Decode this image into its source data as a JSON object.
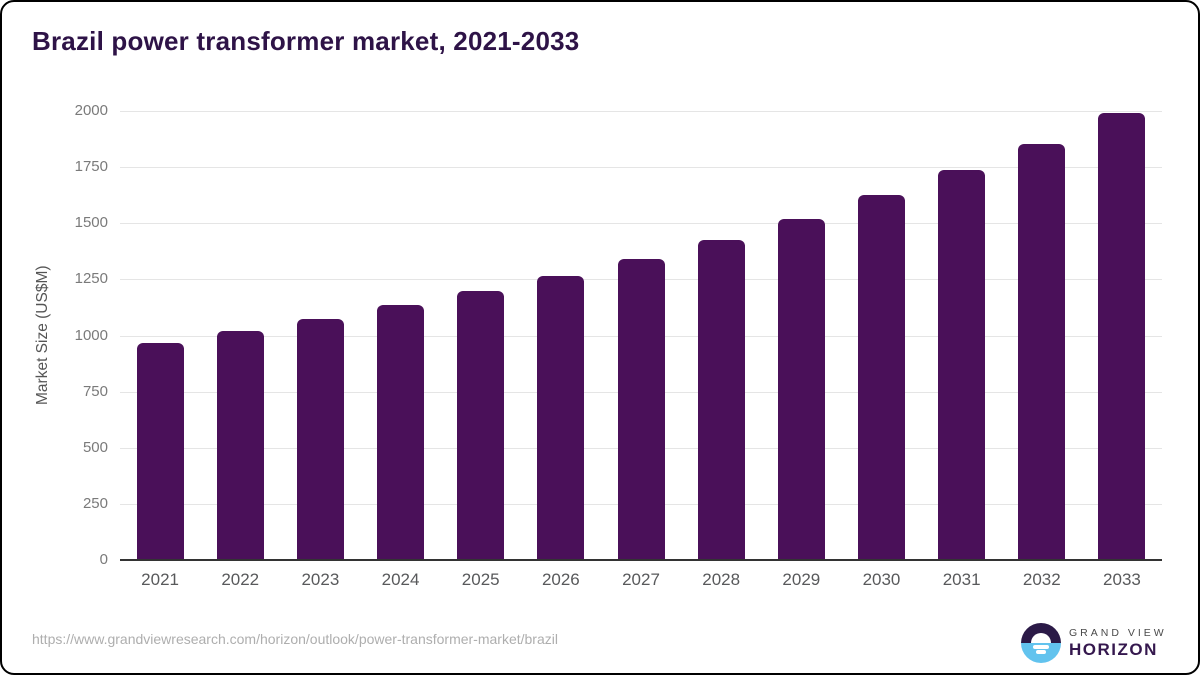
{
  "title": "Brazil power transformer market, 2021-2033",
  "chart_data": {
    "type": "bar",
    "categories": [
      "2021",
      "2022",
      "2023",
      "2024",
      "2025",
      "2026",
      "2027",
      "2028",
      "2029",
      "2030",
      "2031",
      "2032",
      "2033"
    ],
    "values": [
      965,
      1019,
      1072,
      1134,
      1197,
      1264,
      1340,
      1424,
      1518,
      1624,
      1735,
      1855,
      1990
    ],
    "title": "Brazil power transformer market, 2021-2033",
    "xlabel": "",
    "ylabel": "Market Size (US$M)",
    "ylim": [
      0,
      2000
    ],
    "yticks": [
      0,
      250,
      500,
      750,
      1000,
      1250,
      1500,
      1750,
      2000
    ],
    "grid": true,
    "legend": "none",
    "bar_color": "#4a1059"
  },
  "colors": {
    "title_text": "#2e1347",
    "bar_fill": "#4a1059",
    "axis_line": "#333333",
    "gridline": "#e5e5e5",
    "tick_text": "#7a7a7a",
    "brand_dark": "#2b1a47",
    "brand_blue": "#62c3ee"
  },
  "footer": {
    "source_url": "https://www.grandviewresearch.com/horizon/outlook/power-transformer-market/brazil",
    "brand_line1": "GRAND VIEW",
    "brand_line2": "HORIZON"
  }
}
